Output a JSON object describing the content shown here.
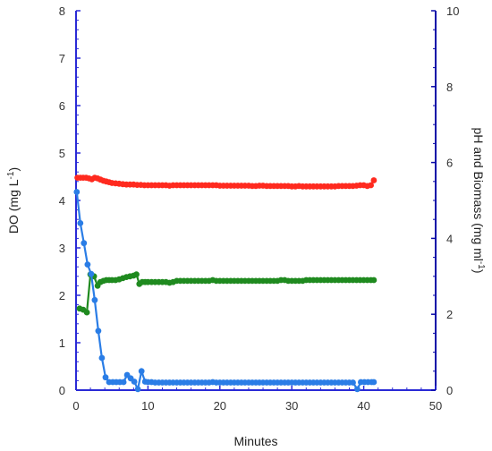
{
  "chart_data": {
    "type": "scatter",
    "xlabel": "Minutes",
    "ylabel_left": "DO (mg L-1)",
    "ylabel_right": "pH and Biomass (mg ml-1)",
    "xlim": [
      0,
      50
    ],
    "ylim_left": [
      0,
      8
    ],
    "ylim_right": [
      0,
      10
    ],
    "x_ticks": [
      "0",
      "10",
      "20",
      "30",
      "40",
      "50"
    ],
    "y_left_ticks": [
      "0",
      "1",
      "2",
      "3",
      "4",
      "5",
      "6",
      "7",
      "8"
    ],
    "y_right_ticks": [
      "0",
      "2",
      "4",
      "6",
      "8",
      "10"
    ],
    "axis_colors": {
      "left": "#2a2ad6",
      "right": "#0a0aa8",
      "bottom": "#2a2ad6"
    },
    "grid": false,
    "legend": "none",
    "series": [
      {
        "color": "#ff2a1f",
        "axis": "right",
        "points": [
          [
            0.2,
            5.6
          ],
          [
            0.6,
            5.6
          ],
          [
            1.0,
            5.6
          ],
          [
            1.4,
            5.6
          ],
          [
            1.8,
            5.58
          ],
          [
            2.2,
            5.56
          ],
          [
            2.6,
            5.6
          ],
          [
            3.0,
            5.58
          ],
          [
            3.4,
            5.55
          ],
          [
            3.8,
            5.52
          ],
          [
            4.2,
            5.5
          ],
          [
            4.6,
            5.48
          ],
          [
            5.0,
            5.46
          ],
          [
            5.5,
            5.45
          ],
          [
            6.0,
            5.44
          ],
          [
            6.5,
            5.43
          ],
          [
            7.0,
            5.42
          ],
          [
            7.5,
            5.42
          ],
          [
            8.0,
            5.42
          ],
          [
            8.5,
            5.41
          ],
          [
            9.0,
            5.41
          ],
          [
            9.5,
            5.4
          ],
          [
            10,
            5.4
          ],
          [
            10.5,
            5.4
          ],
          [
            11,
            5.4
          ],
          [
            11.5,
            5.4
          ],
          [
            12,
            5.4
          ],
          [
            12.5,
            5.4
          ],
          [
            13,
            5.39
          ],
          [
            13.5,
            5.4
          ],
          [
            14,
            5.4
          ],
          [
            14.5,
            5.4
          ],
          [
            15,
            5.4
          ],
          [
            15.5,
            5.4
          ],
          [
            16,
            5.4
          ],
          [
            16.5,
            5.4
          ],
          [
            17,
            5.4
          ],
          [
            17.5,
            5.4
          ],
          [
            18,
            5.4
          ],
          [
            18.5,
            5.4
          ],
          [
            19,
            5.4
          ],
          [
            19.5,
            5.4
          ],
          [
            20,
            5.39
          ],
          [
            20.5,
            5.39
          ],
          [
            21,
            5.39
          ],
          [
            21.5,
            5.39
          ],
          [
            22,
            5.39
          ],
          [
            22.5,
            5.39
          ],
          [
            23,
            5.39
          ],
          [
            23.5,
            5.39
          ],
          [
            24,
            5.39
          ],
          [
            24.5,
            5.38
          ],
          [
            25,
            5.38
          ],
          [
            25.5,
            5.39
          ],
          [
            26,
            5.39
          ],
          [
            26.5,
            5.38
          ],
          [
            27,
            5.38
          ],
          [
            27.5,
            5.38
          ],
          [
            28,
            5.38
          ],
          [
            28.5,
            5.38
          ],
          [
            29,
            5.38
          ],
          [
            29.5,
            5.38
          ],
          [
            30,
            5.37
          ],
          [
            30.5,
            5.37
          ],
          [
            31,
            5.38
          ],
          [
            31.5,
            5.37
          ],
          [
            32,
            5.37
          ],
          [
            32.5,
            5.37
          ],
          [
            33,
            5.37
          ],
          [
            33.5,
            5.37
          ],
          [
            34,
            5.37
          ],
          [
            34.5,
            5.37
          ],
          [
            35,
            5.37
          ],
          [
            35.5,
            5.37
          ],
          [
            36,
            5.37
          ],
          [
            36.5,
            5.38
          ],
          [
            37,
            5.38
          ],
          [
            37.5,
            5.38
          ],
          [
            38,
            5.38
          ],
          [
            38.5,
            5.38
          ],
          [
            39,
            5.39
          ],
          [
            39.5,
            5.4
          ],
          [
            40,
            5.4
          ],
          [
            40.5,
            5.38
          ],
          [
            41,
            5.4
          ],
          [
            41.4,
            5.53
          ]
        ]
      },
      {
        "color": "#1f8a1f",
        "axis": "right",
        "points": [
          [
            0.5,
            2.15
          ],
          [
            1.0,
            2.12
          ],
          [
            1.5,
            2.05
          ],
          [
            2.0,
            3.05
          ],
          [
            2.5,
            3.0
          ],
          [
            3.0,
            2.75
          ],
          [
            3.4,
            2.85
          ],
          [
            3.8,
            2.88
          ],
          [
            4.2,
            2.9
          ],
          [
            4.6,
            2.9
          ],
          [
            5.0,
            2.9
          ],
          [
            5.5,
            2.9
          ],
          [
            6.0,
            2.92
          ],
          [
            6.5,
            2.95
          ],
          [
            7.0,
            2.98
          ],
          [
            7.5,
            3.0
          ],
          [
            8.0,
            3.02
          ],
          [
            8.4,
            3.05
          ],
          [
            8.8,
            2.8
          ],
          [
            9.2,
            2.85
          ],
          [
            9.6,
            2.85
          ],
          [
            10,
            2.85
          ],
          [
            10.5,
            2.85
          ],
          [
            11,
            2.85
          ],
          [
            11.5,
            2.85
          ],
          [
            12,
            2.85
          ],
          [
            12.5,
            2.85
          ],
          [
            13,
            2.83
          ],
          [
            13.5,
            2.85
          ],
          [
            14,
            2.88
          ],
          [
            14.5,
            2.88
          ],
          [
            15,
            2.88
          ],
          [
            15.5,
            2.88
          ],
          [
            16,
            2.88
          ],
          [
            16.5,
            2.88
          ],
          [
            17,
            2.88
          ],
          [
            17.5,
            2.88
          ],
          [
            18,
            2.88
          ],
          [
            18.5,
            2.88
          ],
          [
            19,
            2.9
          ],
          [
            19.5,
            2.88
          ],
          [
            20,
            2.88
          ],
          [
            20.5,
            2.88
          ],
          [
            21,
            2.88
          ],
          [
            21.5,
            2.88
          ],
          [
            22,
            2.88
          ],
          [
            22.5,
            2.88
          ],
          [
            23,
            2.88
          ],
          [
            23.5,
            2.88
          ],
          [
            24,
            2.88
          ],
          [
            24.5,
            2.88
          ],
          [
            25,
            2.88
          ],
          [
            25.5,
            2.88
          ],
          [
            26,
            2.88
          ],
          [
            26.5,
            2.88
          ],
          [
            27,
            2.88
          ],
          [
            27.5,
            2.88
          ],
          [
            28,
            2.88
          ],
          [
            28.5,
            2.9
          ],
          [
            29,
            2.9
          ],
          [
            29.5,
            2.88
          ],
          [
            30,
            2.88
          ],
          [
            30.5,
            2.88
          ],
          [
            31,
            2.88
          ],
          [
            31.5,
            2.88
          ],
          [
            32,
            2.9
          ],
          [
            32.5,
            2.9
          ],
          [
            33,
            2.9
          ],
          [
            33.5,
            2.9
          ],
          [
            34,
            2.9
          ],
          [
            34.5,
            2.9
          ],
          [
            35,
            2.9
          ],
          [
            35.5,
            2.9
          ],
          [
            36,
            2.9
          ],
          [
            36.5,
            2.9
          ],
          [
            37,
            2.9
          ],
          [
            37.5,
            2.9
          ],
          [
            38,
            2.9
          ],
          [
            38.5,
            2.9
          ],
          [
            39,
            2.9
          ],
          [
            39.5,
            2.9
          ],
          [
            40,
            2.9
          ],
          [
            40.5,
            2.9
          ],
          [
            41,
            2.9
          ],
          [
            41.4,
            2.9
          ]
        ]
      },
      {
        "color": "#2a7de6",
        "axis": "left",
        "points": [
          [
            0.1,
            4.18
          ],
          [
            0.6,
            3.52
          ],
          [
            1.1,
            3.1
          ],
          [
            1.6,
            2.65
          ],
          [
            2.1,
            2.45
          ],
          [
            2.6,
            1.9
          ],
          [
            3.1,
            1.25
          ],
          [
            3.6,
            0.68
          ],
          [
            4.1,
            0.27
          ],
          [
            4.6,
            0.17
          ],
          [
            5.1,
            0.17
          ],
          [
            5.6,
            0.17
          ],
          [
            6.1,
            0.17
          ],
          [
            6.6,
            0.17
          ],
          [
            7.1,
            0.32
          ],
          [
            7.6,
            0.25
          ],
          [
            8.1,
            0.18
          ],
          [
            8.6,
            0.02
          ],
          [
            9.1,
            0.4
          ],
          [
            9.6,
            0.18
          ],
          [
            10,
            0.17
          ],
          [
            10.5,
            0.17
          ],
          [
            11,
            0.16
          ],
          [
            11.5,
            0.16
          ],
          [
            12,
            0.16
          ],
          [
            12.5,
            0.16
          ],
          [
            13,
            0.16
          ],
          [
            13.5,
            0.16
          ],
          [
            14,
            0.16
          ],
          [
            14.5,
            0.16
          ],
          [
            15,
            0.16
          ],
          [
            15.5,
            0.16
          ],
          [
            16,
            0.16
          ],
          [
            16.5,
            0.16
          ],
          [
            17,
            0.16
          ],
          [
            17.5,
            0.16
          ],
          [
            18,
            0.16
          ],
          [
            18.5,
            0.16
          ],
          [
            19,
            0.17
          ],
          [
            19.5,
            0.16
          ],
          [
            20,
            0.16
          ],
          [
            20.5,
            0.16
          ],
          [
            21,
            0.16
          ],
          [
            21.5,
            0.16
          ],
          [
            22,
            0.16
          ],
          [
            22.5,
            0.16
          ],
          [
            23,
            0.16
          ],
          [
            23.5,
            0.16
          ],
          [
            24,
            0.16
          ],
          [
            24.5,
            0.16
          ],
          [
            25,
            0.16
          ],
          [
            25.5,
            0.16
          ],
          [
            26,
            0.16
          ],
          [
            26.5,
            0.16
          ],
          [
            27,
            0.16
          ],
          [
            27.5,
            0.16
          ],
          [
            28,
            0.16
          ],
          [
            28.5,
            0.16
          ],
          [
            29,
            0.16
          ],
          [
            29.5,
            0.16
          ],
          [
            30,
            0.16
          ],
          [
            30.5,
            0.16
          ],
          [
            31,
            0.16
          ],
          [
            31.5,
            0.16
          ],
          [
            32,
            0.16
          ],
          [
            32.5,
            0.16
          ],
          [
            33,
            0.16
          ],
          [
            33.5,
            0.16
          ],
          [
            34,
            0.16
          ],
          [
            34.5,
            0.16
          ],
          [
            35,
            0.16
          ],
          [
            35.5,
            0.16
          ],
          [
            36,
            0.16
          ],
          [
            36.5,
            0.16
          ],
          [
            37,
            0.16
          ],
          [
            37.5,
            0.16
          ],
          [
            38,
            0.16
          ],
          [
            38.5,
            0.16
          ],
          [
            39.1,
            0.02
          ],
          [
            39.6,
            0.17
          ],
          [
            40.1,
            0.17
          ],
          [
            40.6,
            0.17
          ],
          [
            41.1,
            0.17
          ],
          [
            41.4,
            0.17
          ]
        ]
      }
    ]
  }
}
